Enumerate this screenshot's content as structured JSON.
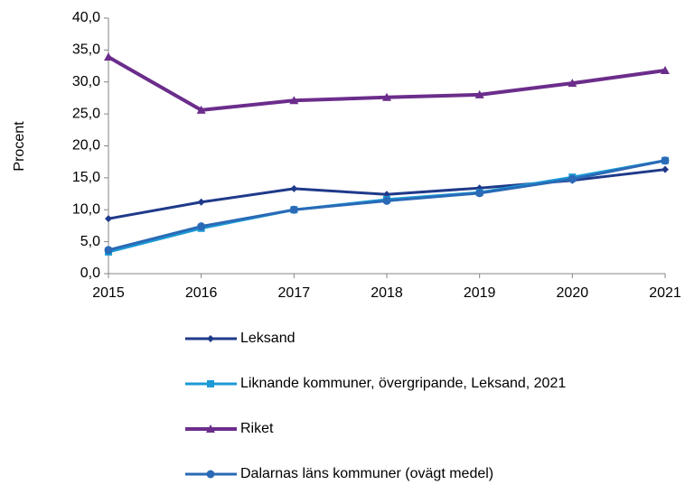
{
  "chart_data": {
    "type": "line",
    "ylabel": "Procent",
    "x": [
      2015,
      2016,
      2017,
      2018,
      2019,
      2020,
      2021
    ],
    "xlim": [
      2015,
      2021
    ],
    "xticks": [
      2015,
      2016,
      2017,
      2018,
      2019,
      2020,
      2021
    ],
    "ylim": [
      0,
      40
    ],
    "yticks": [
      {
        "value": 0,
        "label": "0,0"
      },
      {
        "value": 5,
        "label": "5,0"
      },
      {
        "value": 10,
        "label": "10,0"
      },
      {
        "value": 15,
        "label": "15,0"
      },
      {
        "value": 20,
        "label": "20,0"
      },
      {
        "value": 25,
        "label": "25,0"
      },
      {
        "value": 30,
        "label": "30,0"
      },
      {
        "value": 35,
        "label": "35,0"
      },
      {
        "value": 40,
        "label": "40,0"
      }
    ],
    "grid": false,
    "legend": "bottom",
    "series": [
      {
        "name": "Leksand",
        "color": "#1f3a8a",
        "marker": "diamond",
        "values": [
          8.6,
          11.2,
          13.3,
          12.4,
          13.4,
          14.6,
          16.3
        ]
      },
      {
        "name": "Liknande kommuner, övergripande, Leksand, 2021",
        "color": "#1b9ad6",
        "marker": "square",
        "values": [
          3.4,
          7.1,
          10.0,
          11.6,
          12.7,
          15.1,
          17.7
        ]
      },
      {
        "name": "Riket",
        "color": "#6b2d8b",
        "marker": "triangle",
        "values": [
          33.9,
          25.6,
          27.1,
          27.6,
          28.0,
          29.8,
          31.8
        ]
      },
      {
        "name": "Dalarnas läns kommuner (ovägt medel)",
        "color": "#2a6ab6",
        "marker": "circle",
        "values": [
          3.7,
          7.4,
          10.0,
          11.4,
          12.6,
          14.8,
          17.7
        ]
      }
    ]
  }
}
